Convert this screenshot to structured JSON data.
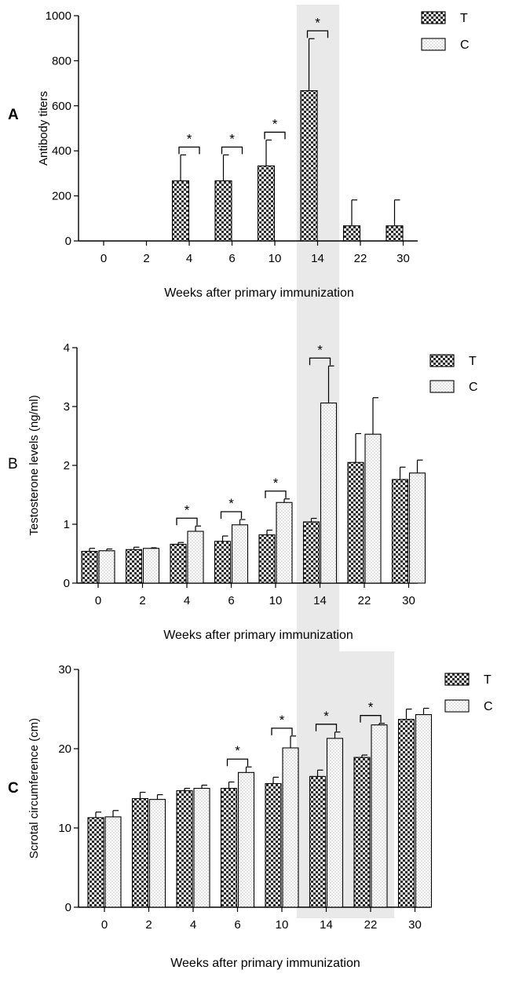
{
  "colors": {
    "t_fill": "#2b2b2b",
    "c_fill": "#ffffff",
    "axis": "#000000",
    "shade": "#e9e9e9"
  },
  "chart_data": [
    {
      "type": "bar",
      "panel_label": "A",
      "title": "",
      "xlabel": "Weeks after primary immunization",
      "ylabel": "Antibody titers",
      "ylim": [
        0,
        1000
      ],
      "yticks": [
        0,
        200,
        400,
        600,
        800,
        1000
      ],
      "categories": [
        "0",
        "2",
        "4",
        "6",
        "10",
        "14",
        "22",
        "30"
      ],
      "highlight_category": "14",
      "legend": [
        "T",
        "C"
      ],
      "series": [
        {
          "name": "T",
          "values": [
            0,
            0,
            267,
            267,
            333,
            667,
            67,
            67
          ],
          "errors": [
            0,
            0,
            115,
            115,
            115,
            231,
            115,
            115
          ]
        },
        {
          "name": "C",
          "values": [
            0,
            0,
            0,
            0,
            0,
            0,
            0,
            0
          ],
          "errors": [
            0,
            0,
            0,
            0,
            0,
            0,
            0,
            0
          ]
        }
      ],
      "significance": [
        {
          "category": "4",
          "label": "*"
        },
        {
          "category": "6",
          "label": "*"
        },
        {
          "category": "10",
          "label": "*"
        },
        {
          "category": "14",
          "label": "*"
        }
      ]
    },
    {
      "type": "bar",
      "panel_label": "B",
      "title": "",
      "xlabel": "Weeks after primary immunization",
      "ylabel": "Testosterone levels (ng/ml)",
      "ylim": [
        0,
        4
      ],
      "yticks": [
        0,
        1,
        2,
        3,
        4
      ],
      "categories": [
        "0",
        "2",
        "4",
        "6",
        "10",
        "14",
        "22",
        "30"
      ],
      "highlight_category": "14",
      "legend": [
        "T",
        "C"
      ],
      "series": [
        {
          "name": "T",
          "values": [
            0.54,
            0.57,
            0.66,
            0.71,
            0.82,
            1.04,
            2.05,
            1.76
          ],
          "errors": [
            0.05,
            0.04,
            0.03,
            0.09,
            0.08,
            0.06,
            0.49,
            0.21
          ]
        },
        {
          "name": "C",
          "values": [
            0.55,
            0.59,
            0.88,
            0.99,
            1.37,
            3.06,
            2.53,
            1.87
          ],
          "errors": [
            0.03,
            0.01,
            0.09,
            0.09,
            0.06,
            0.63,
            0.62,
            0.22
          ]
        }
      ],
      "significance": [
        {
          "category": "4",
          "label": "*"
        },
        {
          "category": "6",
          "label": "*"
        },
        {
          "category": "10",
          "label": "*"
        },
        {
          "category": "14",
          "label": "*"
        }
      ]
    },
    {
      "type": "bar",
      "panel_label": "C",
      "title": "",
      "xlabel": "Weeks after primary immunization",
      "ylabel": "Scrotal circumference (cm)",
      "ylim": [
        0,
        30
      ],
      "yticks": [
        0,
        10,
        20,
        30
      ],
      "categories": [
        "0",
        "2",
        "4",
        "6",
        "10",
        "14",
        "22",
        "30"
      ],
      "highlight_category": "14-22",
      "legend": [
        "T",
        "C"
      ],
      "series": [
        {
          "name": "T",
          "values": [
            11.3,
            13.7,
            14.7,
            15.0,
            15.6,
            16.5,
            18.9,
            23.7
          ],
          "errors": [
            0.7,
            0.8,
            0.3,
            0.8,
            0.8,
            0.8,
            0.3,
            1.3
          ]
        },
        {
          "name": "C",
          "values": [
            11.4,
            13.6,
            15.0,
            17.0,
            20.1,
            21.3,
            23.0,
            24.3
          ],
          "errors": [
            0.8,
            0.6,
            0.4,
            0.7,
            1.5,
            0.8,
            0.2,
            0.8
          ]
        }
      ],
      "significance": [
        {
          "category": "6",
          "label": "*"
        },
        {
          "category": "10",
          "label": "*"
        },
        {
          "category": "14",
          "label": "*"
        },
        {
          "category": "22",
          "label": "*"
        }
      ]
    }
  ]
}
